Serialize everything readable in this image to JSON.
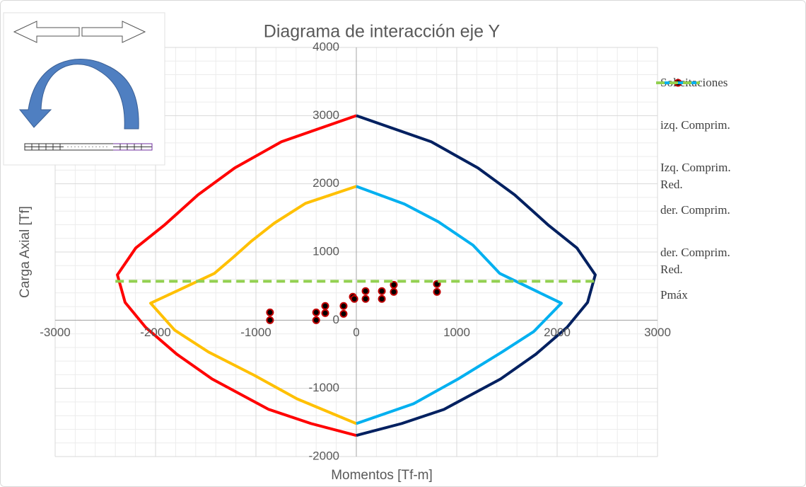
{
  "chart_data": {
    "type": "scatter",
    "title": "Diagrama de interacción eje Y",
    "x_label": "Momentos [Tf-m]",
    "y_label": "Carga Axial [Tf]",
    "xlim": [
      -3000,
      3000
    ],
    "xticks": [
      -3000,
      -2000,
      -1000,
      0,
      1000,
      2000,
      3000
    ],
    "ylim": [
      -2000,
      4000
    ],
    "yticks": [
      -2000,
      -1000,
      0,
      1000,
      2000,
      3000,
      4000
    ],
    "grid": true,
    "legend": "right",
    "series": [
      {
        "name": "Solicitaciones",
        "kind": "markers",
        "color": "#c00000",
        "x": [
          -860,
          -860,
          -400,
          -400,
          -310,
          -310,
          -127,
          -127,
          -35,
          -20,
          92,
          92,
          254,
          254,
          373,
          373,
          803,
          803
        ],
        "values": [
          114,
          0,
          114,
          0,
          208,
          104,
          208,
          93,
          343,
          312,
          426,
          312,
          426,
          312,
          519,
          415,
          530,
          415
        ]
      },
      {
        "name": "izq. Comprim.",
        "kind": "line",
        "color": "#ff0000",
        "x": [
          0,
          -746,
          -1211,
          -1577,
          -1915,
          -2197,
          -2380,
          -2303,
          -2099,
          -1789,
          -1437,
          -873,
          -451,
          0
        ],
        "values": [
          3000,
          2617,
          2233,
          1838,
          1391,
          1059,
          665,
          260,
          -104,
          -498,
          -862,
          -1308,
          -1516,
          -1690
        ]
      },
      {
        "name": "Izq. Comprim. Red.",
        "kind": "line",
        "color": "#ffc000",
        "x": [
          0,
          -507,
          -817,
          -1042,
          -1225,
          -1415,
          -2049,
          -1810,
          -1472,
          -1014,
          -592,
          0
        ],
        "values": [
          1963,
          1713,
          1423,
          1163,
          924,
          685,
          249,
          -145,
          -467,
          -810,
          -1153,
          -1516
        ]
      },
      {
        "name": "der. Comprim.",
        "kind": "line",
        "color": "#002060",
        "x": [
          0,
          746,
          1211,
          1577,
          1915,
          2197,
          2380,
          2303,
          2099,
          1789,
          1437,
          873,
          451,
          0
        ],
        "values": [
          3000,
          2617,
          2233,
          1838,
          1391,
          1059,
          665,
          260,
          -104,
          -498,
          -862,
          -1308,
          -1516,
          -1690
        ]
      },
      {
        "name": "der. Comprim. Red.",
        "kind": "line",
        "color": "#00b0f0",
        "x": [
          0,
          479,
          817,
          1162,
          1429,
          2042,
          1768,
          1451,
          1014,
          570,
          0
        ],
        "values": [
          1963,
          1703,
          1443,
          1100,
          685,
          249,
          -166,
          -467,
          -862,
          -1225,
          -1516
        ]
      },
      {
        "name": "Pmáx",
        "kind": "line",
        "dash": true,
        "color": "#92d050",
        "x": [
          -2400,
          2400
        ],
        "values": [
          570,
          570
        ]
      }
    ]
  }
}
